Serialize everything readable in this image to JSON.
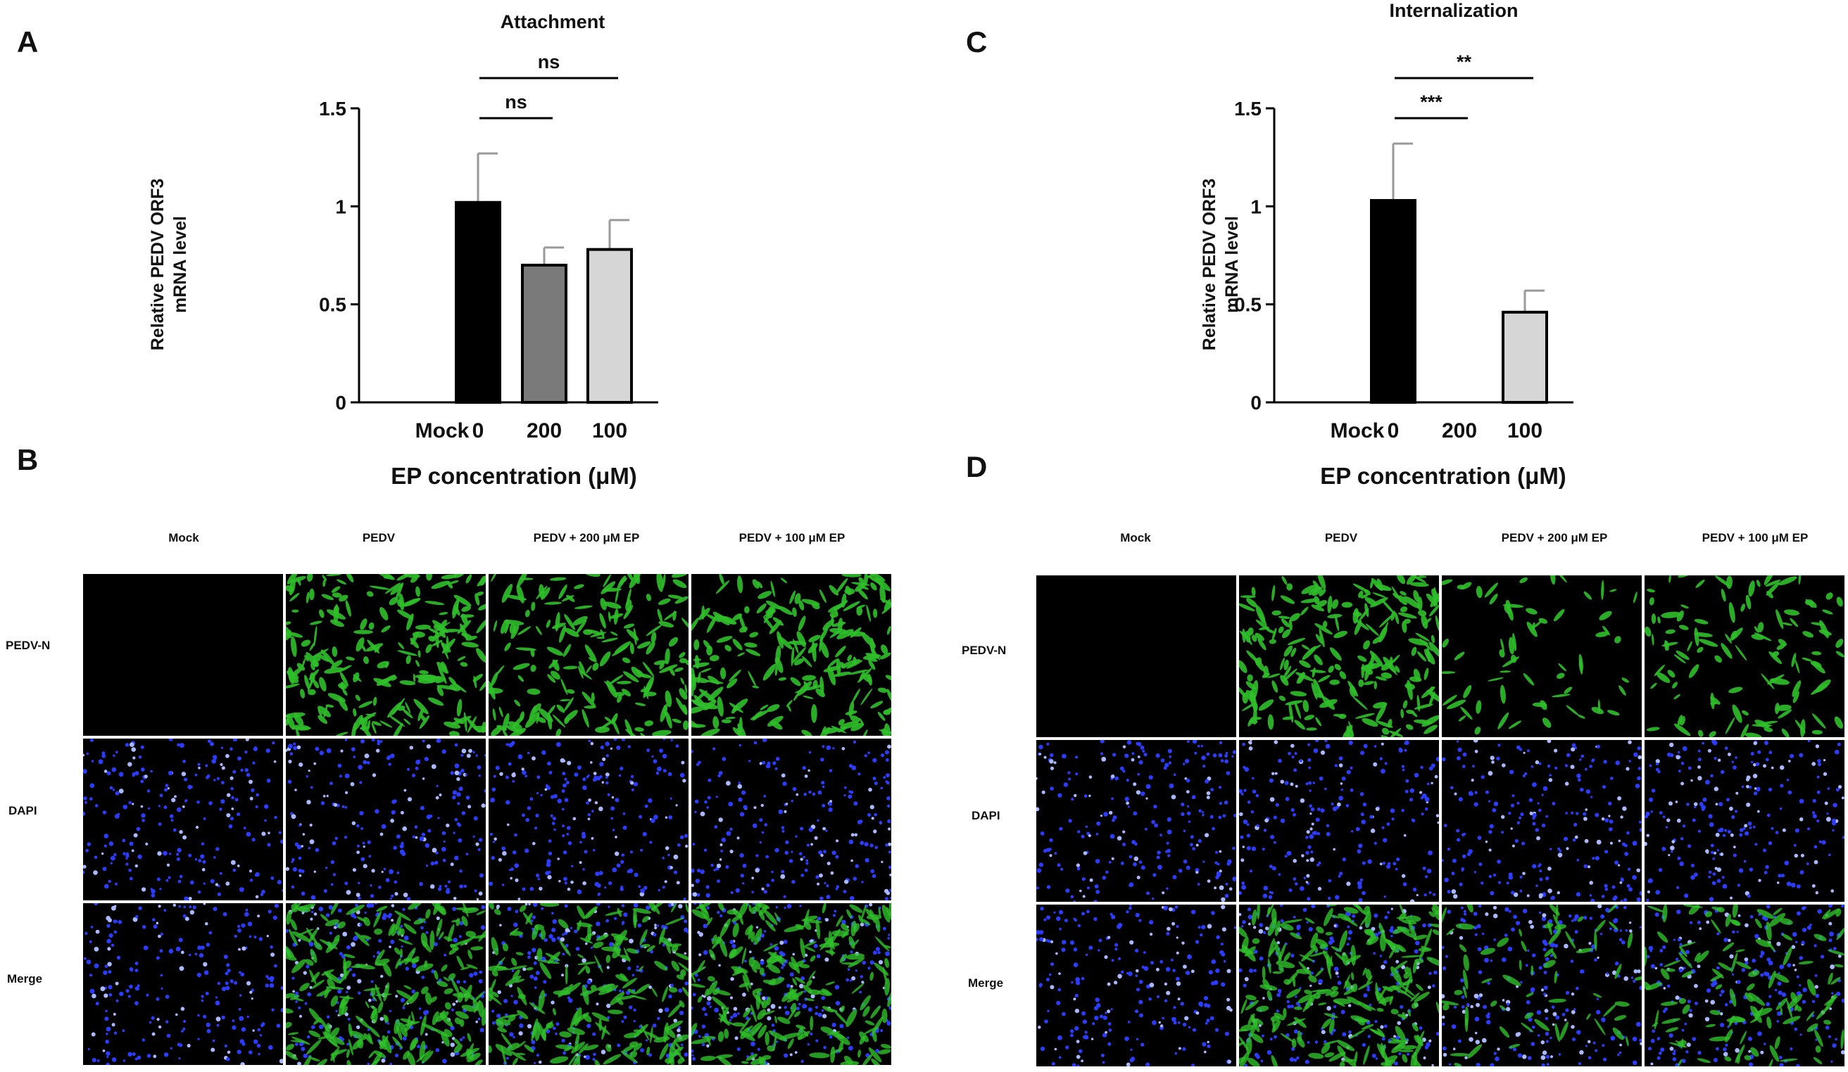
{
  "panels": {
    "A": {
      "label": "A"
    },
    "B": {
      "label": "B"
    },
    "C": {
      "label": "C"
    },
    "D": {
      "label": "D"
    }
  },
  "chart_data": [
    {
      "panel": "A",
      "type": "bar",
      "title": "Attachment",
      "xlabel": "EP concentration (μM)",
      "ylabel_line1": "Relative PEDV ORF3",
      "ylabel_line2": "mRNA level",
      "categories": [
        "Mock",
        "0",
        "200",
        "100"
      ],
      "values": [
        0,
        1.02,
        0.7,
        0.78
      ],
      "errors": [
        0,
        0.25,
        0.09,
        0.15
      ],
      "bar_colors": [
        "#000000",
        "#000000",
        "#7a7a7a",
        "#d6d6d6"
      ],
      "ylim": [
        0,
        1.5
      ],
      "yticks": [
        0,
        0.5,
        1,
        1.5
      ],
      "ytick_labels": [
        "0",
        "0.5",
        "1",
        "1.5"
      ],
      "comparisons": [
        {
          "from": 1,
          "to": 2,
          "label": "ns"
        },
        {
          "from": 1,
          "to": 3,
          "label": "ns"
        }
      ]
    },
    {
      "panel": "C",
      "type": "bar",
      "title": "Internalization",
      "xlabel": "EP concentration (μM)",
      "ylabel_line1": "Relative PEDV ORF3",
      "ylabel_line2": "mRNA level",
      "categories": [
        "Mock",
        "0",
        "200",
        "100"
      ],
      "values": [
        0,
        1.03,
        0,
        0.46
      ],
      "errors": [
        0,
        0.29,
        0,
        0.11
      ],
      "bar_colors": [
        "#000000",
        "#000000",
        "#7a7a7a",
        "#d6d6d6"
      ],
      "ylim": [
        0,
        1.5
      ],
      "yticks": [
        0,
        0.5,
        1,
        1.5
      ],
      "ytick_labels": [
        "0",
        "0.5",
        "1",
        "1.5"
      ],
      "comparisons": [
        {
          "from": 1,
          "to": 2,
          "label": "***"
        },
        {
          "from": 1,
          "to": 3,
          "label": "**"
        }
      ]
    }
  ],
  "micrographs": {
    "B": {
      "columns": [
        "Mock",
        "PEDV",
        "PEDV + 200 μM EP",
        "PEDV + 100 μM EP"
      ],
      "rows": [
        "PEDV-N",
        "DAPI",
        "Merge"
      ]
    },
    "D": {
      "columns": [
        "Mock",
        "PEDV",
        "PEDV + 200 μM EP",
        "PEDV + 100 μM EP"
      ],
      "rows": [
        "PEDV-N",
        "DAPI",
        "Merge"
      ]
    },
    "colors": {
      "green": "#2fbf2a",
      "blue": "#2b3cff",
      "background": "#000000"
    },
    "green_density": {
      "B": [
        0,
        0.9,
        0.75,
        0.85
      ],
      "D": [
        0,
        0.9,
        0.25,
        0.45
      ]
    }
  }
}
